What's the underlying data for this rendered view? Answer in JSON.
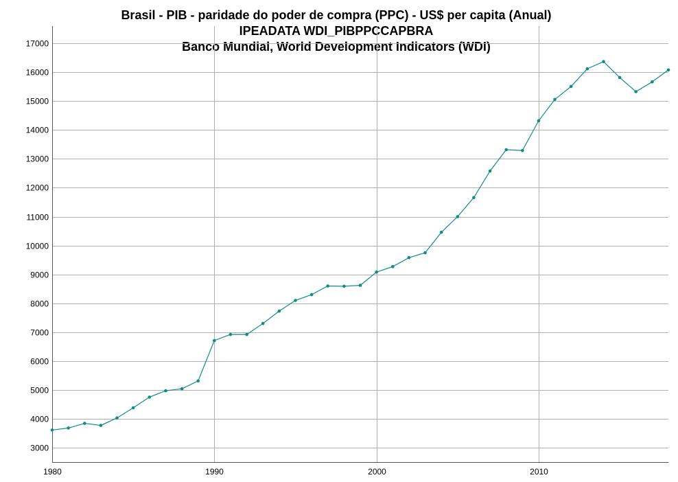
{
  "chart_data": {
    "type": "line",
    "title": [
      "Brasil - PIB - paridade do poder de compra (PPC) - US$ per capita (Anual)",
      "IPEADATA WDI_PIBPPCCAPBRA",
      "Banco Mundial, World Development Indicators (WDI)"
    ],
    "xlabel": "",
    "ylabel": "",
    "xlim": [
      1980,
      2018
    ],
    "ylim": [
      2500,
      17600
    ],
    "x_ticks": [
      1980,
      1990,
      2000,
      2010
    ],
    "y_ticks": [
      3000,
      4000,
      5000,
      6000,
      7000,
      8000,
      9000,
      10000,
      11000,
      12000,
      13000,
      14000,
      15000,
      16000,
      17000
    ],
    "grid": true,
    "series_color": "#128a8a",
    "x": [
      1980,
      1981,
      1982,
      1983,
      1984,
      1985,
      1986,
      1987,
      1988,
      1989,
      1990,
      1991,
      1992,
      1993,
      1994,
      1995,
      1996,
      1997,
      1998,
      1999,
      2000,
      2001,
      2002,
      2003,
      2004,
      2005,
      2006,
      2007,
      2008,
      2009,
      2010,
      2011,
      2012,
      2013,
      2014,
      2015,
      2016,
      2017,
      2018
    ],
    "y": [
      3610,
      3680,
      3840,
      3770,
      4030,
      4380,
      4750,
      4970,
      5040,
      5310,
      6710,
      6920,
      6920,
      7300,
      7730,
      8100,
      8300,
      8600,
      8590,
      8620,
      9080,
      9270,
      9580,
      9750,
      10460,
      11000,
      11660,
      12580,
      13320,
      13290,
      14320,
      15060,
      15510,
      16120,
      16370,
      15820,
      15330,
      15670,
      16080
    ]
  }
}
